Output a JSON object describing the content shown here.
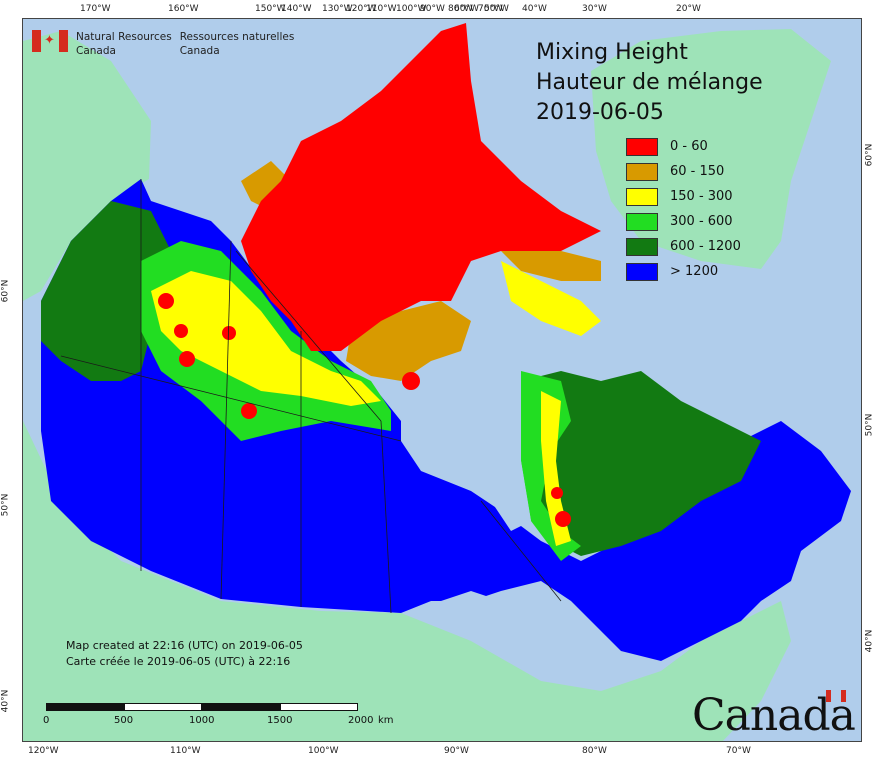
{
  "header": {
    "agency_en": "Natural Resources",
    "agency_en2": "Canada",
    "agency_fr": "Ressources naturelles",
    "agency_fr2": "Canada"
  },
  "map_title": {
    "line1": "Mixing Height",
    "line2": "Hauteur de mélange",
    "date": "2019-06-05"
  },
  "legend": [
    {
      "label": "0 - 60",
      "color": "#ff0000"
    },
    {
      "label": "60 - 150",
      "color": "#d89a00"
    },
    {
      "label": "150 - 300",
      "color": "#ffff00"
    },
    {
      "label": "300 - 600",
      "color": "#22dd22"
    },
    {
      "label": "600 - 1200",
      "color": "#127a12"
    },
    {
      "label": "> 1200",
      "color": "#0000ff"
    }
  ],
  "colors": {
    "ocean": "#b0cdeb",
    "land": "#9ee3b8",
    "border": "#1a1a1a"
  },
  "credits": {
    "en": "Map created at 22:16 (UTC) on 2019-06-05",
    "fr": "Carte créée le 2019-06-05 (UTC) à 22:16"
  },
  "scale_labels": [
    "0",
    "500",
    "1000",
    "1500",
    "2000",
    "km"
  ],
  "wordmark": "Canada",
  "graticule": {
    "top": [
      "170°W",
      "160°W",
      "150°W",
      "140°W",
      "130°W",
      "120°W",
      "110°W",
      "100°W",
      "90°W",
      "80°W",
      "70°W",
      "60°W",
      "50°W",
      "40°W",
      "30°W",
      "20°W"
    ],
    "bottom": [
      "120°W",
      "110°W",
      "100°W",
      "90°W",
      "80°W",
      "70°W"
    ],
    "left": [
      "60°N",
      "50°N",
      "40°N"
    ],
    "right": [
      "60°N",
      "50°N",
      "40°N"
    ]
  }
}
